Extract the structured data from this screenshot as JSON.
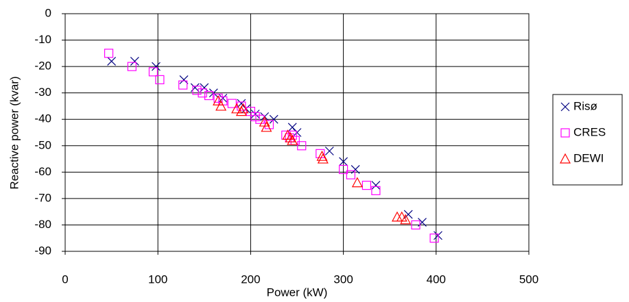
{
  "chart_data": {
    "type": "scatter",
    "x_label": "Power (kW)",
    "y_label": "Reactive power (kvar)",
    "xlim": [
      0,
      500
    ],
    "xticks": [
      0,
      100,
      200,
      300,
      400,
      500
    ],
    "ylim": [
      -90,
      0
    ],
    "yticks": [
      0,
      -10,
      -20,
      -30,
      -40,
      -50,
      -60,
      -70,
      -80,
      -90
    ],
    "grid": true,
    "legend": "right",
    "series": [
      {
        "name": "Risø",
        "color": "#000080",
        "marker": "x",
        "x": [
          50,
          75,
          98,
          128,
          140,
          150,
          160,
          170,
          190,
          195,
          205,
          215,
          225,
          245,
          250,
          285,
          300,
          313,
          335,
          370,
          385,
          402
        ],
        "values": [
          -18,
          -18,
          -20,
          -25,
          -28,
          -28,
          -30,
          -32,
          -34,
          -36,
          -38,
          -39,
          -40,
          -43,
          -45,
          -52,
          -56,
          -59,
          -65,
          -76,
          -79,
          -84
        ]
      },
      {
        "name": "CRES",
        "color": "#ff00ff",
        "marker": "square",
        "x": [
          47,
          72,
          95,
          102,
          127,
          142,
          148,
          155,
          165,
          170,
          180,
          190,
          200,
          205,
          210,
          220,
          238,
          242,
          245,
          248,
          255,
          275,
          300,
          308,
          325,
          335,
          378,
          398
        ],
        "values": [
          -15,
          -20,
          -22,
          -25,
          -27,
          -29,
          -30,
          -31,
          -32,
          -33,
          -34,
          -35,
          -37,
          -39,
          -40,
          -42,
          -46,
          -47,
          -46,
          -48,
          -50,
          -53,
          -59,
          -61,
          -65,
          -67,
          -80,
          -85
        ]
      },
      {
        "name": "DEWI",
        "color": "#ff0000",
        "marker": "triangle",
        "x": [
          165,
          168,
          185,
          190,
          192,
          215,
          217,
          240,
          243,
          245,
          277,
          278,
          315,
          358,
          363,
          367
        ],
        "values": [
          -33,
          -35,
          -36,
          -37,
          -36,
          -41,
          -43,
          -46,
          -47,
          -48,
          -54,
          -55,
          -64,
          -77,
          -77,
          -78
        ]
      }
    ]
  }
}
